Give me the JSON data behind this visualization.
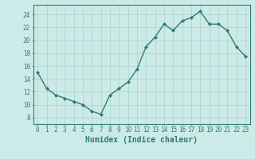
{
  "x": [
    0,
    1,
    2,
    3,
    4,
    5,
    6,
    7,
    8,
    9,
    10,
    11,
    12,
    13,
    14,
    15,
    16,
    17,
    18,
    19,
    20,
    21,
    22,
    23
  ],
  "y": [
    15,
    12.5,
    11.5,
    11,
    10.5,
    10,
    9,
    8.5,
    11.5,
    12.5,
    13.5,
    15.5,
    19,
    20.5,
    22.5,
    21.5,
    23,
    23.5,
    24.5,
    22.5,
    22.5,
    21.5,
    19,
    17.5
  ],
  "line_color": "#2e7d6e",
  "marker": "D",
  "marker_size": 2,
  "bg_color": "#cceae7",
  "grid_color": "#aad4d0",
  "axis_color": "#2e7d6e",
  "tick_color": "#2e7d6e",
  "xlabel": "Humidex (Indice chaleur)",
  "xlabel_fontsize": 7,
  "xlim": [
    -0.5,
    23.5
  ],
  "ylim": [
    7,
    25.5
  ],
  "yticks": [
    8,
    10,
    12,
    14,
    16,
    18,
    20,
    22,
    24
  ],
  "xticks": [
    0,
    1,
    2,
    3,
    4,
    5,
    6,
    7,
    8,
    9,
    10,
    11,
    12,
    13,
    14,
    15,
    16,
    17,
    18,
    19,
    20,
    21,
    22,
    23
  ],
  "tick_fontsize": 5.5,
  "line_width": 1.0
}
